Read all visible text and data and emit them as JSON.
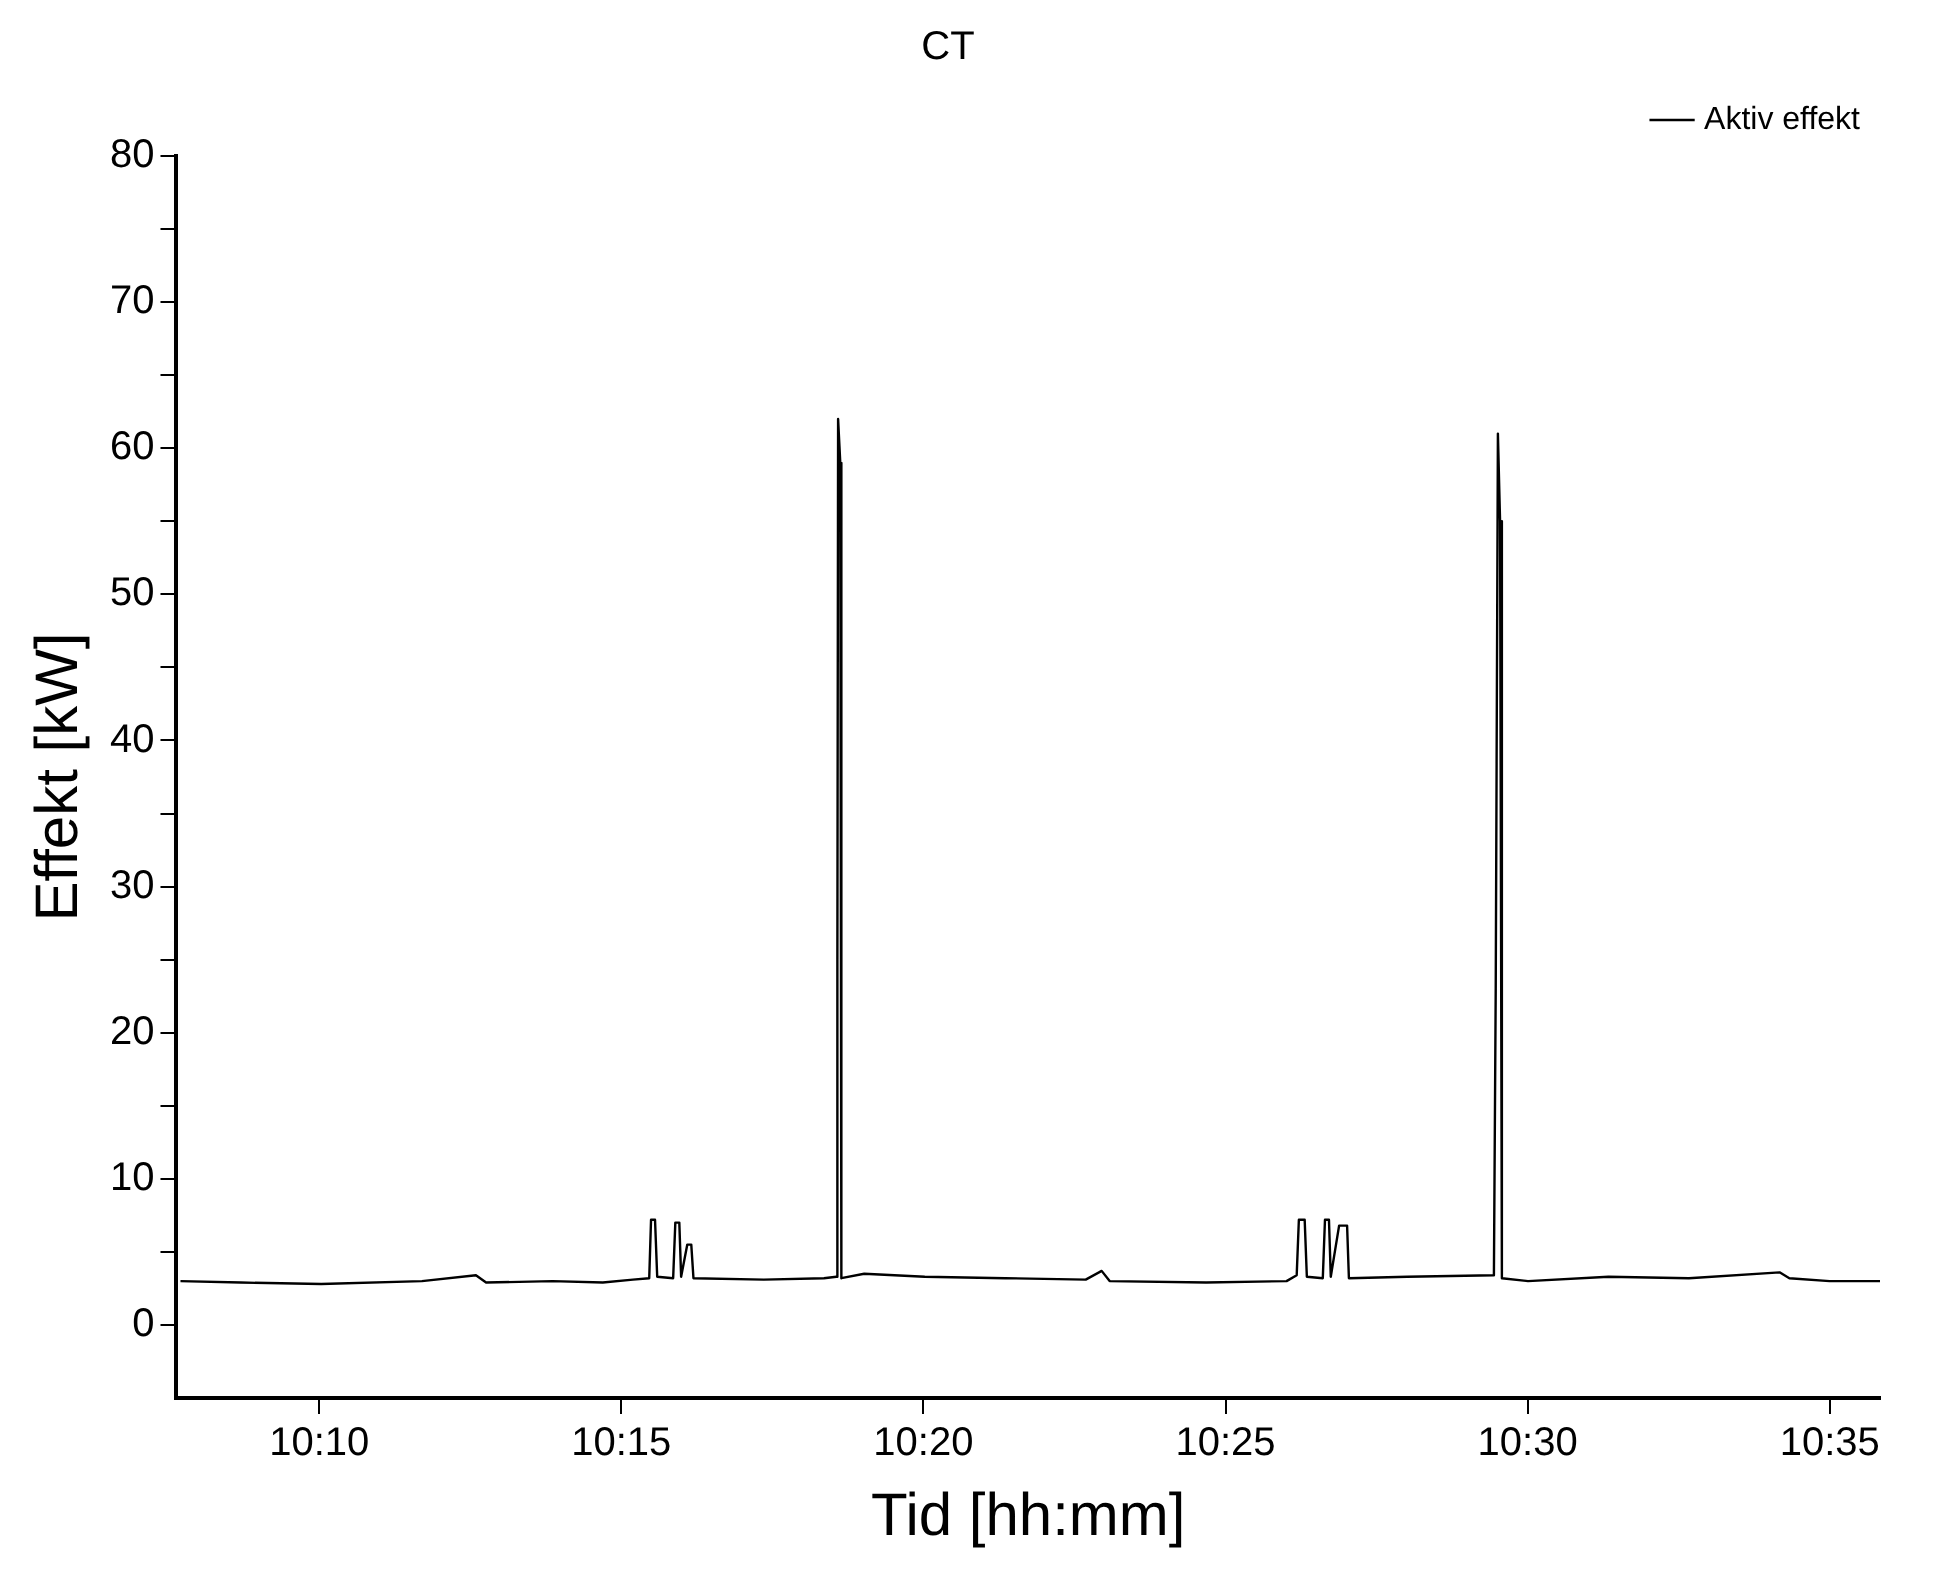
{
  "chart_data": {
    "type": "line",
    "title": "CT",
    "xlabel": "Tid [hh:mm]",
    "ylabel": "Effekt [kW]",
    "xlim": [
      10.1273,
      10.5972
    ],
    "xticks": [
      {
        "value": 10.16667,
        "label": "10:10"
      },
      {
        "value": 10.25,
        "label": "10:15"
      },
      {
        "value": 10.33333,
        "label": "10:20"
      },
      {
        "value": 10.41667,
        "label": "10:25"
      },
      {
        "value": 10.5,
        "label": "10:30"
      },
      {
        "value": 10.58333,
        "label": "10:35"
      }
    ],
    "ylim": [
      -5,
      80
    ],
    "yticks": [
      0,
      {
        "value": 5,
        "label": null
      },
      10,
      {
        "value": 15,
        "label": null
      },
      20,
      {
        "value": 25,
        "label": null
      },
      30,
      {
        "value": 35,
        "label": null
      },
      40,
      {
        "value": 45,
        "label": null
      },
      50,
      {
        "value": 55,
        "label": null
      },
      60,
      {
        "value": 65,
        "label": null
      },
      70,
      {
        "value": 75,
        "label": null
      },
      80
    ],
    "grid": false,
    "legend": "top right",
    "marker": "none",
    "line_style": "solid",
    "series": [
      {
        "name": "Aktiv effekt",
        "color": "#000000",
        "x": [
          10.1284,
          10.145,
          10.1672,
          10.195,
          10.2099,
          10.2127,
          10.231,
          10.2449,
          10.2532,
          10.2577,
          10.2582,
          10.2593,
          10.2599,
          10.2643,
          10.2649,
          10.266,
          10.2665,
          10.2682,
          10.2693,
          10.2699,
          10.2893,
          10.3059,
          10.3093,
          10.3096,
          10.3098,
          10.3104,
          10.3107,
          10.317,
          10.3337,
          10.3559,
          10.3781,
          10.3825,
          10.3847,
          10.4113,
          10.4335,
          10.4363,
          10.4369,
          10.4385,
          10.4391,
          10.4435,
          10.4441,
          10.4452,
          10.4457,
          10.448,
          10.4502,
          10.4507,
          10.4668,
          10.4907,
          10.4912,
          10.4918,
          10.4924,
          10.4929,
          10.5001,
          10.5223,
          10.5445,
          10.5695,
          10.5722,
          10.5833,
          10.5972
        ],
        "values": [
          3.0,
          2.9,
          2.8,
          3.0,
          3.4,
          2.9,
          3.0,
          2.9,
          3.1,
          3.2,
          7.2,
          7.2,
          3.3,
          3.2,
          7.0,
          7.0,
          3.3,
          5.5,
          5.5,
          3.2,
          3.1,
          3.2,
          3.3,
          25,
          62,
          59,
          3.2,
          3.5,
          3.3,
          3.2,
          3.1,
          3.7,
          3.0,
          2.9,
          3.0,
          3.4,
          7.2,
          7.2,
          3.3,
          3.2,
          7.2,
          7.2,
          3.3,
          6.8,
          6.8,
          3.2,
          3.3,
          3.4,
          23,
          61,
          55,
          3.2,
          3.0,
          3.3,
          3.2,
          3.6,
          3.2,
          3.0,
          3.0
        ]
      }
    ]
  }
}
